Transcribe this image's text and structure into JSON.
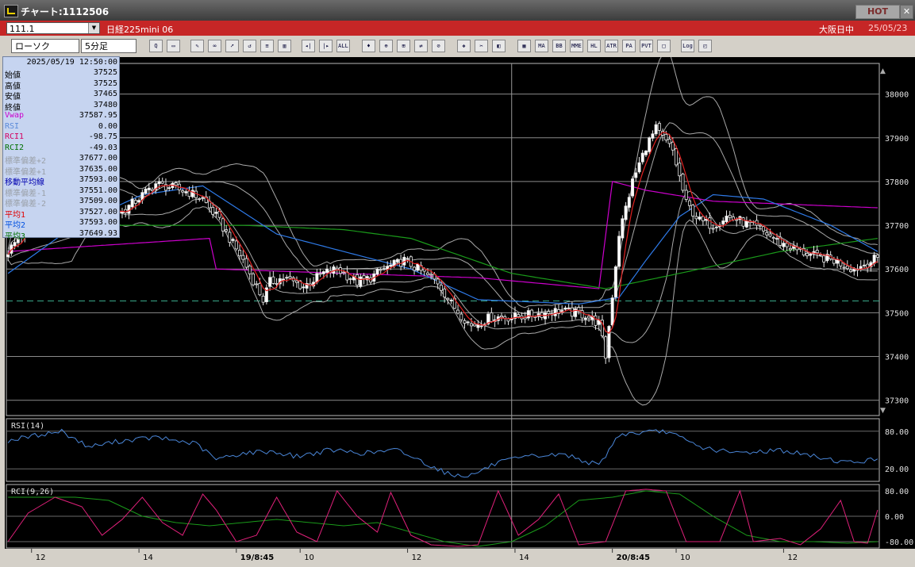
{
  "window": {
    "title": "チャート:1112506",
    "hot_label": "HOT",
    "close_label": "✕"
  },
  "header": {
    "code": "111.1",
    "symbol": "日経225mini 06",
    "session": "大阪日中",
    "date": "25/05/23"
  },
  "toolbar": {
    "chart_type": "ローソク",
    "interval": "5分足",
    "buttons": [
      {
        "name": "search-icon",
        "label": "Q"
      },
      {
        "name": "window-icon",
        "label": "▭"
      },
      {
        "name": "pencil-icon",
        "label": "✎"
      },
      {
        "name": "link-icon",
        "label": "∞"
      },
      {
        "name": "cursor-icon",
        "label": "➚"
      },
      {
        "name": "rotate-icon",
        "label": "↺"
      },
      {
        "name": "note-icon",
        "label": "≡"
      },
      {
        "name": "trash-icon",
        "label": "▥"
      },
      {
        "name": "bar-prev-icon",
        "label": "◂|"
      },
      {
        "name": "bar-next-icon",
        "label": "|▸"
      },
      {
        "name": "all-button",
        "label": "ALL"
      },
      {
        "name": "bid-icon",
        "label": "♦"
      },
      {
        "name": "zoom-icon",
        "label": "⊕"
      },
      {
        "name": "chart-icon",
        "label": "⊞"
      },
      {
        "name": "compare-icon",
        "label": "⇄"
      },
      {
        "name": "lock-icon",
        "label": "⊘"
      },
      {
        "name": "palette-icon",
        "label": "❖"
      },
      {
        "name": "wrench-icon",
        "label": "✂"
      },
      {
        "name": "color-icon",
        "label": "◧"
      },
      {
        "name": "indicator-icon",
        "label": "▦"
      },
      {
        "name": "ma-button",
        "label": "MA"
      },
      {
        "name": "bb-button",
        "label": "BB"
      },
      {
        "name": "mme-button",
        "label": "MME"
      },
      {
        "name": "hl-button",
        "label": "HL"
      },
      {
        "name": "atr-button",
        "label": "ATR"
      },
      {
        "name": "para-button",
        "label": "PA"
      },
      {
        "name": "pvt-button",
        "label": "PVT"
      },
      {
        "name": "box-button",
        "label": "□"
      },
      {
        "name": "log-button",
        "label": "Log"
      },
      {
        "name": "settings-icon",
        "label": "◰"
      }
    ]
  },
  "info_panel": {
    "datetime": "2025/05/19  12:50:00",
    "rows": [
      {
        "label": "始値",
        "value": "37525",
        "color": "#000000"
      },
      {
        "label": "高値",
        "value": "37525",
        "color": "#000000"
      },
      {
        "label": "安値",
        "value": "37465",
        "color": "#000000"
      },
      {
        "label": "終値",
        "value": "37480",
        "color": "#000000"
      },
      {
        "label": "Vwap",
        "value": "37587.95",
        "color": "#cc00cc"
      },
      {
        "label": "RSI",
        "value": "0.00",
        "color": "#5a8ad8"
      },
      {
        "label": "RCI1",
        "value": "-98.75",
        "color": "#d40060"
      },
      {
        "label": "RCI2",
        "value": "-49.03",
        "color": "#007000"
      },
      {
        "label": "標準偏差+2",
        "value": "37677.00",
        "color": "#9aa0a8"
      },
      {
        "label": "標準偏差+1",
        "value": "37635.00",
        "color": "#9aa0a8"
      },
      {
        "label": "移動平均線",
        "value": "37593.00",
        "color": "#0000b0"
      },
      {
        "label": "標準偏差-1",
        "value": "37551.00",
        "color": "#9aa0a8"
      },
      {
        "label": "標準偏差-2",
        "value": "37509.00",
        "color": "#9aa0a8"
      },
      {
        "label": "平均1",
        "value": "37527.00",
        "color": "#e00000"
      },
      {
        "label": "平均2",
        "value": "37593.00",
        "color": "#0050e0"
      },
      {
        "label": "平均3",
        "value": "37649.93",
        "color": "#007000"
      }
    ]
  },
  "chart_data": {
    "type": "candlestick",
    "price_axis": {
      "ticks": [
        38000,
        37900,
        37800,
        37700,
        37600,
        37500,
        37400,
        37300
      ],
      "ylim": [
        37265,
        38070
      ]
    },
    "rsi": {
      "label": "RSI(14)",
      "ticks": [
        "80.00",
        "20.00"
      ],
      "ylim": [
        0,
        100
      ]
    },
    "rci": {
      "label": "RCI(9,26)",
      "ticks": [
        "80.00",
        "0.00",
        "-80.00"
      ],
      "ylim": [
        -100,
        100
      ]
    },
    "x_ticks": [
      {
        "label": "12",
        "bold": false,
        "bar": 7
      },
      {
        "label": "14",
        "bold": false,
        "bar": 39
      },
      {
        "label": "19/8:45",
        "bold": true,
        "bar": 68
      },
      {
        "label": "10",
        "bold": false,
        "bar": 87
      },
      {
        "label": "12",
        "bold": false,
        "bar": 119
      },
      {
        "label": "14",
        "bold": false,
        "bar": 151
      },
      {
        "label": "20/8:45",
        "bold": true,
        "bar": 180
      },
      {
        "label": "10",
        "bold": false,
        "bar": 199
      },
      {
        "label": "12",
        "bold": false,
        "bar": 231
      }
    ],
    "bar_count": 260,
    "cursor_bar": 150,
    "dashed_level": 37527,
    "close_anchors": [
      [
        0,
        37640
      ],
      [
        10,
        37740
      ],
      [
        16,
        37790
      ],
      [
        24,
        37745
      ],
      [
        34,
        37730
      ],
      [
        44,
        37795
      ],
      [
        54,
        37775
      ],
      [
        58,
        37760
      ],
      [
        62,
        37720
      ],
      [
        66,
        37670
      ],
      [
        70,
        37620
      ],
      [
        72,
        37590
      ],
      [
        76,
        37530
      ],
      [
        78,
        37570
      ],
      [
        82,
        37580
      ],
      [
        88,
        37560
      ],
      [
        94,
        37590
      ],
      [
        98,
        37600
      ],
      [
        104,
        37570
      ],
      [
        108,
        37580
      ],
      [
        112,
        37600
      ],
      [
        118,
        37620
      ],
      [
        124,
        37590
      ],
      [
        128,
        37570
      ],
      [
        132,
        37520
      ],
      [
        138,
        37470
      ],
      [
        144,
        37490
      ],
      [
        150,
        37490
      ],
      [
        156,
        37495
      ],
      [
        164,
        37505
      ],
      [
        172,
        37495
      ],
      [
        176,
        37475
      ],
      [
        178,
        37400
      ],
      [
        182,
        37680
      ],
      [
        186,
        37800
      ],
      [
        190,
        37880
      ],
      [
        193,
        37920
      ],
      [
        198,
        37870
      ],
      [
        202,
        37750
      ],
      [
        206,
        37710
      ],
      [
        210,
        37700
      ],
      [
        214,
        37720
      ],
      [
        218,
        37710
      ],
      [
        224,
        37690
      ],
      [
        230,
        37660
      ],
      [
        236,
        37640
      ],
      [
        240,
        37630
      ],
      [
        246,
        37620
      ],
      [
        252,
        37600
      ],
      [
        259,
        37625
      ]
    ],
    "vwap_anchors": [
      [
        0,
        37640
      ],
      [
        60,
        37670
      ],
      [
        62,
        37600
      ],
      [
        100,
        37590
      ],
      [
        140,
        37580
      ],
      [
        176,
        37555
      ],
      [
        180,
        37800
      ],
      [
        190,
        37780
      ],
      [
        210,
        37755
      ],
      [
        259,
        37740
      ]
    ],
    "ma_anchors": [
      [
        0,
        37590
      ],
      [
        20,
        37700
      ],
      [
        40,
        37770
      ],
      [
        58,
        37790
      ],
      [
        80,
        37680
      ],
      [
        100,
        37640
      ],
      [
        120,
        37600
      ],
      [
        140,
        37530
      ],
      [
        170,
        37520
      ],
      [
        182,
        37535
      ],
      [
        190,
        37620
      ],
      [
        200,
        37720
      ],
      [
        210,
        37770
      ],
      [
        225,
        37760
      ],
      [
        245,
        37700
      ],
      [
        259,
        37640
      ]
    ],
    "ma_long_anchors": [
      [
        0,
        37700
      ],
      [
        40,
        37700
      ],
      [
        70,
        37700
      ],
      [
        100,
        37690
      ],
      [
        120,
        37670
      ],
      [
        150,
        37590
      ],
      [
        178,
        37555
      ],
      [
        200,
        37590
      ],
      [
        230,
        37640
      ],
      [
        259,
        37670
      ]
    ],
    "rsi_anchors": [
      [
        0,
        65
      ],
      [
        10,
        75
      ],
      [
        16,
        80
      ],
      [
        24,
        55
      ],
      [
        34,
        65
      ],
      [
        44,
        70
      ],
      [
        56,
        60
      ],
      [
        62,
        35
      ],
      [
        70,
        45
      ],
      [
        78,
        48
      ],
      [
        86,
        40
      ],
      [
        96,
        50
      ],
      [
        106,
        45
      ],
      [
        116,
        50
      ],
      [
        126,
        25
      ],
      [
        132,
        10
      ],
      [
        138,
        10
      ],
      [
        146,
        30
      ],
      [
        156,
        40
      ],
      [
        166,
        43
      ],
      [
        176,
        25
      ],
      [
        182,
        75
      ],
      [
        190,
        78
      ],
      [
        196,
        80
      ],
      [
        206,
        55
      ],
      [
        216,
        45
      ],
      [
        230,
        50
      ],
      [
        240,
        40
      ],
      [
        250,
        30
      ],
      [
        259,
        35
      ]
    ],
    "rci1_anchors": [
      [
        0,
        -80
      ],
      [
        6,
        10
      ],
      [
        14,
        60
      ],
      [
        22,
        30
      ],
      [
        28,
        -60
      ],
      [
        34,
        -10
      ],
      [
        40,
        60
      ],
      [
        46,
        -20
      ],
      [
        52,
        -60
      ],
      [
        58,
        70
      ],
      [
        62,
        20
      ],
      [
        68,
        -80
      ],
      [
        74,
        -60
      ],
      [
        80,
        60
      ],
      [
        86,
        -50
      ],
      [
        92,
        -80
      ],
      [
        98,
        80
      ],
      [
        104,
        0
      ],
      [
        110,
        -50
      ],
      [
        114,
        75
      ],
      [
        120,
        -60
      ],
      [
        126,
        -90
      ],
      [
        134,
        -95
      ],
      [
        140,
        -90
      ],
      [
        146,
        80
      ],
      [
        152,
        -60
      ],
      [
        158,
        -10
      ],
      [
        164,
        70
      ],
      [
        170,
        -90
      ],
      [
        178,
        -80
      ],
      [
        184,
        80
      ],
      [
        190,
        85
      ],
      [
        196,
        80
      ],
      [
        202,
        -80
      ],
      [
        212,
        -80
      ],
      [
        218,
        80
      ],
      [
        222,
        -80
      ],
      [
        230,
        -70
      ],
      [
        236,
        -90
      ],
      [
        242,
        -40
      ],
      [
        248,
        50
      ],
      [
        252,
        -80
      ],
      [
        256,
        -85
      ],
      [
        259,
        20
      ]
    ],
    "rci2_anchors": [
      [
        0,
        60
      ],
      [
        20,
        60
      ],
      [
        30,
        50
      ],
      [
        40,
        0
      ],
      [
        50,
        -20
      ],
      [
        60,
        -30
      ],
      [
        70,
        -20
      ],
      [
        80,
        -10
      ],
      [
        90,
        -20
      ],
      [
        100,
        -30
      ],
      [
        110,
        -20
      ],
      [
        120,
        -50
      ],
      [
        130,
        -80
      ],
      [
        140,
        -95
      ],
      [
        150,
        -80
      ],
      [
        160,
        -30
      ],
      [
        170,
        50
      ],
      [
        180,
        60
      ],
      [
        190,
        80
      ],
      [
        200,
        70
      ],
      [
        210,
        0
      ],
      [
        220,
        -60
      ],
      [
        230,
        -80
      ],
      [
        240,
        -80
      ],
      [
        250,
        -85
      ],
      [
        259,
        -80
      ]
    ]
  }
}
